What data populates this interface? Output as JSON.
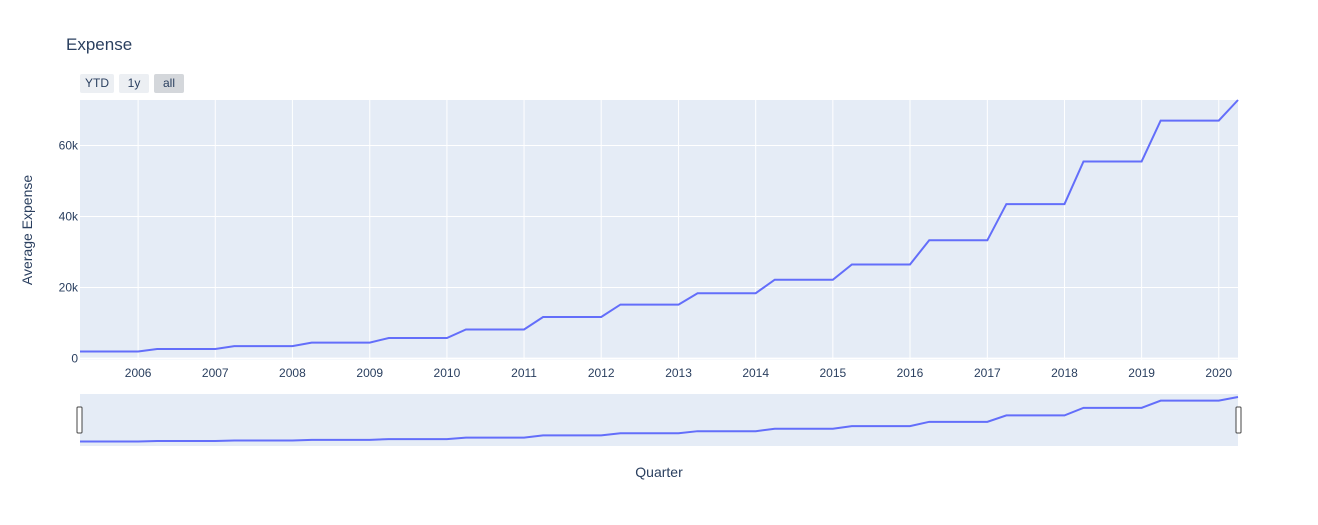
{
  "range_selector": {
    "buttons": [
      {
        "label": "YTD",
        "active": false
      },
      {
        "label": "1y",
        "active": false
      },
      {
        "label": "all",
        "active": true
      }
    ]
  },
  "colors": {
    "line": "#636efa",
    "plot_bg": "#e5ecf6",
    "grid": "#ffffff",
    "text": "#2a3f5f"
  },
  "chart_data": {
    "type": "line",
    "title": "Expense",
    "xlabel": "Quarter",
    "ylabel": "Average Expense",
    "xlim": [
      "2005-04-01",
      "2020-04-01"
    ],
    "ylim": [
      -400,
      72800
    ],
    "grid": true,
    "rangeslider": true,
    "x_ticks": [
      "2006",
      "2007",
      "2008",
      "2009",
      "2010",
      "2011",
      "2012",
      "2013",
      "2014",
      "2015",
      "2016",
      "2017",
      "2018",
      "2019",
      "2020"
    ],
    "y_ticks": [
      {
        "value": 0,
        "label": "0"
      },
      {
        "value": 20000,
        "label": "20k"
      },
      {
        "value": 40000,
        "label": "40k"
      },
      {
        "value": 60000,
        "label": "60k"
      }
    ],
    "series": [
      {
        "x": [
          "2005-04-01",
          "2005-07-01",
          "2005-10-01",
          "2006-01-01",
          "2006-04-01",
          "2006-07-01",
          "2006-10-01",
          "2007-01-01",
          "2007-04-01",
          "2007-07-01",
          "2007-10-01",
          "2008-01-01",
          "2008-04-01",
          "2008-07-01",
          "2008-10-01",
          "2009-01-01",
          "2009-04-01",
          "2009-07-01",
          "2009-10-01",
          "2010-01-01",
          "2010-04-01",
          "2010-07-01",
          "2010-10-01",
          "2011-01-01",
          "2011-04-01",
          "2011-07-01",
          "2011-10-01",
          "2012-01-01",
          "2012-04-01",
          "2012-07-01",
          "2012-10-01",
          "2013-01-01",
          "2013-04-01",
          "2013-07-01",
          "2013-10-01",
          "2014-01-01",
          "2014-04-01",
          "2014-07-01",
          "2014-10-01",
          "2015-01-01",
          "2015-04-01",
          "2015-07-01",
          "2015-10-01",
          "2016-01-01",
          "2016-04-01",
          "2016-07-01",
          "2016-10-01",
          "2017-01-01",
          "2017-04-01",
          "2017-07-01",
          "2017-10-01",
          "2018-01-01",
          "2018-04-01",
          "2018-07-01",
          "2018-10-01",
          "2019-01-01",
          "2019-04-01",
          "2019-07-01",
          "2019-10-01",
          "2020-01-01",
          "2020-04-01"
        ],
        "y": [
          2000,
          2000,
          2000,
          2000,
          2700,
          2700,
          2700,
          2700,
          3500,
          3500,
          3500,
          3500,
          4500,
          4500,
          4500,
          4500,
          5800,
          5800,
          5800,
          5800,
          8200,
          8200,
          8200,
          8200,
          11700,
          11700,
          11700,
          11700,
          15200,
          15200,
          15200,
          15200,
          18400,
          18400,
          18400,
          18400,
          22200,
          22200,
          22200,
          22200,
          26500,
          26500,
          26500,
          26500,
          33300,
          33300,
          33300,
          33300,
          43500,
          43500,
          43500,
          43500,
          55500,
          55500,
          55500,
          55500,
          67000,
          67000,
          67000,
          67000,
          72800
        ]
      }
    ]
  }
}
